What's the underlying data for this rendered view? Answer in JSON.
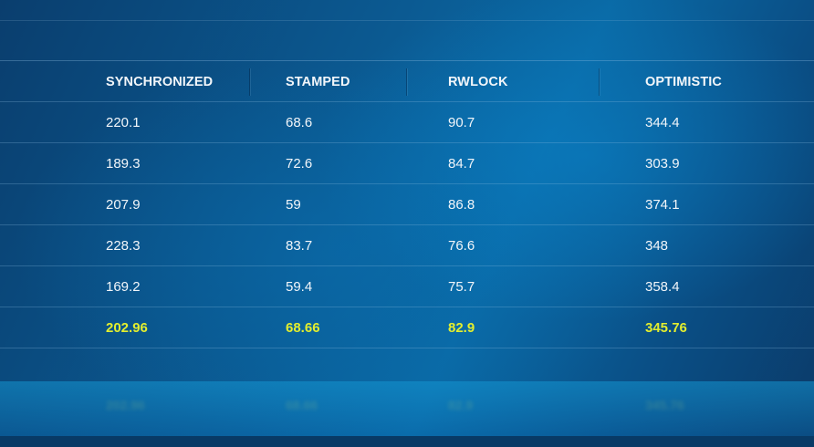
{
  "chart_data": {
    "type": "table",
    "columns": [
      "SYNCHRONIZED",
      "STAMPED",
      "RWLOCK",
      "OPTIMISTIC"
    ],
    "rows": [
      [
        "220.1",
        "68.6",
        "90.7",
        "344.4"
      ],
      [
        "189.3",
        "72.6",
        "84.7",
        "303.9"
      ],
      [
        "207.9",
        "59",
        "86.8",
        "374.1"
      ],
      [
        "228.3",
        "83.7",
        "76.6",
        "348"
      ],
      [
        "169.2",
        "59.4",
        "75.7",
        "358.4"
      ]
    ],
    "averages": [
      "202.96",
      "68.66",
      "82.9",
      "345.76"
    ]
  },
  "colors": {
    "text": "#f2f6fa",
    "average_highlight": "#e3ee2e",
    "background": "#0b5a92"
  }
}
